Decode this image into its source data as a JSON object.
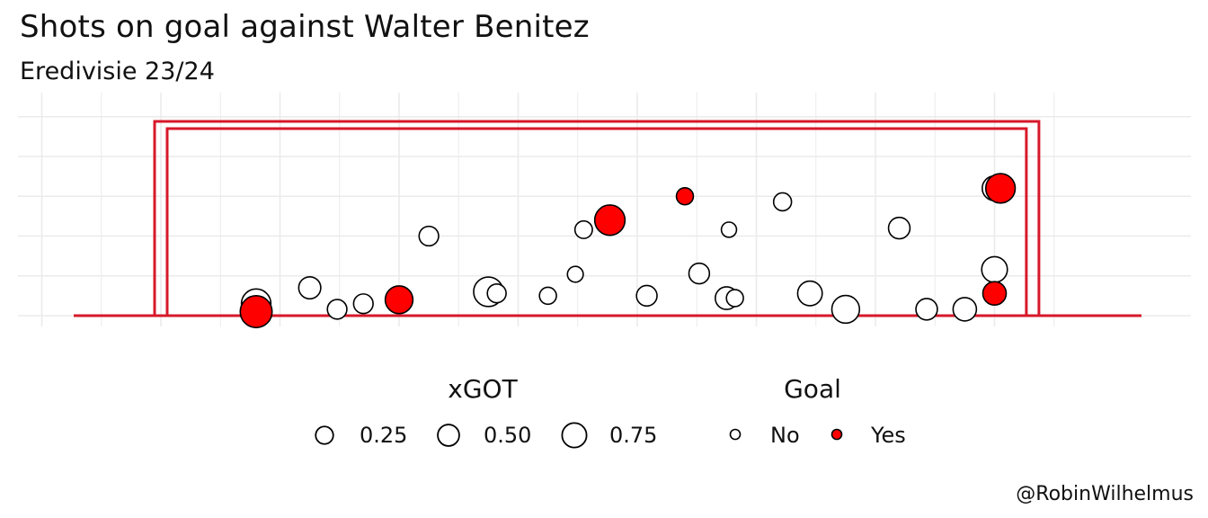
{
  "title": "Shots on goal against Walter Benitez",
  "subtitle": "Eredivisie 23/24",
  "caption": "@RobinWilhelmus",
  "colors": {
    "goal_frame": "#d7182a",
    "goal_yes": "#ff0000",
    "goal_no": "#ffffff",
    "stroke": "#000000",
    "grid": "#ebebeb"
  },
  "chart_data": {
    "type": "scatter",
    "grid": true,
    "xlim": [
      -1.5,
      7.5
    ],
    "ylim": [
      0,
      2.6
    ],
    "goalposts": {
      "left": 0,
      "right": 7.32,
      "crossbar": 2.44
    },
    "points": [
      {
        "x": 0.8,
        "y": 0.15,
        "xgot": 0.55,
        "goal": "No"
      },
      {
        "x": 0.8,
        "y": 0.05,
        "xgot": 0.7,
        "goal": "Yes"
      },
      {
        "x": 1.25,
        "y": 0.35,
        "xgot": 0.2,
        "goal": "No"
      },
      {
        "x": 1.48,
        "y": 0.08,
        "xgot": 0.12,
        "goal": "No"
      },
      {
        "x": 1.7,
        "y": 0.15,
        "xgot": 0.12,
        "goal": "No"
      },
      {
        "x": 2.0,
        "y": 0.2,
        "xgot": 0.45,
        "goal": "Yes"
      },
      {
        "x": 2.25,
        "y": 1.0,
        "xgot": 0.12,
        "goal": "No"
      },
      {
        "x": 2.75,
        "y": 0.3,
        "xgot": 0.55,
        "goal": "No"
      },
      {
        "x": 2.82,
        "y": 0.28,
        "xgot": 0.1,
        "goal": "No"
      },
      {
        "x": 3.25,
        "y": 0.25,
        "xgot": 0.06,
        "goal": "No"
      },
      {
        "x": 3.48,
        "y": 0.52,
        "xgot": 0.04,
        "goal": "No"
      },
      {
        "x": 3.55,
        "y": 1.08,
        "xgot": 0.07,
        "goal": "No"
      },
      {
        "x": 3.77,
        "y": 1.2,
        "xgot": 0.6,
        "goal": "Yes"
      },
      {
        "x": 4.08,
        "y": 0.25,
        "xgot": 0.15,
        "goal": "No"
      },
      {
        "x": 4.4,
        "y": 1.5,
        "xgot": 0.06,
        "goal": "Yes"
      },
      {
        "x": 4.52,
        "y": 0.53,
        "xgot": 0.15,
        "goal": "No"
      },
      {
        "x": 4.75,
        "y": 0.22,
        "xgot": 0.22,
        "goal": "No"
      },
      {
        "x": 4.77,
        "y": 1.08,
        "xgot": 0.03,
        "goal": "No"
      },
      {
        "x": 4.82,
        "y": 0.22,
        "xgot": 0.06,
        "goal": "No"
      },
      {
        "x": 5.22,
        "y": 1.43,
        "xgot": 0.08,
        "goal": "No"
      },
      {
        "x": 5.45,
        "y": 0.28,
        "xgot": 0.3,
        "goal": "No"
      },
      {
        "x": 5.75,
        "y": 0.08,
        "xgot": 0.45,
        "goal": "No"
      },
      {
        "x": 6.2,
        "y": 1.1,
        "xgot": 0.18,
        "goal": "No"
      },
      {
        "x": 6.43,
        "y": 0.08,
        "xgot": 0.18,
        "goal": "No"
      },
      {
        "x": 6.75,
        "y": 0.08,
        "xgot": 0.25,
        "goal": "No"
      },
      {
        "x": 7.0,
        "y": 0.58,
        "xgot": 0.35,
        "goal": "No"
      },
      {
        "x": 7.0,
        "y": 0.28,
        "xgot": 0.25,
        "goal": "Yes"
      },
      {
        "x": 7.0,
        "y": 1.6,
        "xgot": 0.3,
        "goal": "No"
      },
      {
        "x": 7.05,
        "y": 1.6,
        "xgot": 0.55,
        "goal": "Yes"
      }
    ],
    "legend": {
      "placement": "bottom",
      "size_title": "xGOT",
      "size_items": [
        {
          "label": "0.25",
          "value": 0.25
        },
        {
          "label": "0.50",
          "value": 0.5
        },
        {
          "label": "0.75",
          "value": 0.75
        }
      ],
      "color_title": "Goal",
      "color_items": [
        {
          "label": "No",
          "goal": "No"
        },
        {
          "label": "Yes",
          "goal": "Yes"
        }
      ]
    }
  }
}
